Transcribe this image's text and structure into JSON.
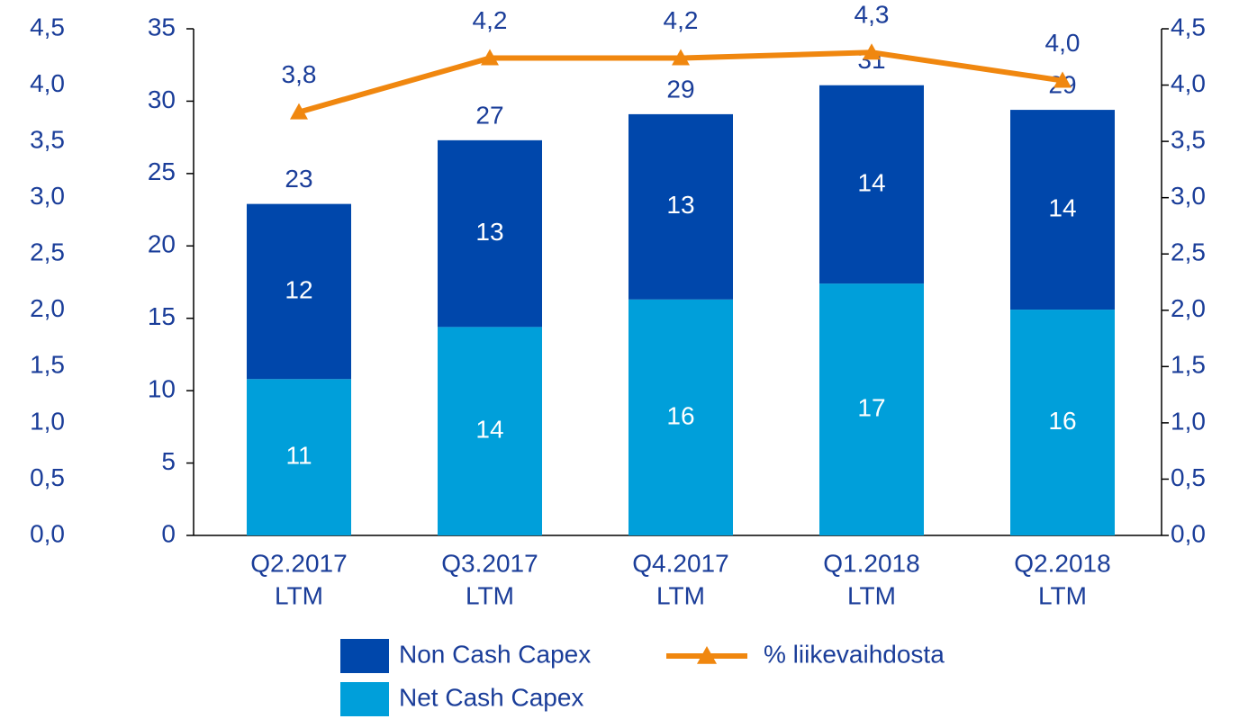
{
  "chart_data": {
    "type": "bar",
    "categories": [
      [
        "Q2.2017",
        "LTM"
      ],
      [
        "Q3.2017",
        "LTM"
      ],
      [
        "Q4.2017",
        "LTM"
      ],
      [
        "Q1.2018",
        "LTM"
      ],
      [
        "Q2.2018",
        "LTM"
      ]
    ],
    "series": [
      {
        "name": "Net Cash Capex",
        "color": "#009fda",
        "values": [
          10.8,
          14.4,
          16.3,
          17.4,
          15.6
        ],
        "value_labels": [
          "11",
          "14",
          "16",
          "17",
          "16"
        ]
      },
      {
        "name": "Non Cash Capex",
        "color": "#0047ab",
        "values": [
          12.1,
          12.9,
          12.8,
          13.7,
          13.8
        ],
        "value_labels": [
          "12",
          "13",
          "13",
          "14",
          "14"
        ]
      },
      {
        "name": "% liikevaihdosta",
        "type": "line",
        "axis": "y2",
        "color": "#f0870f",
        "values": [
          3.76,
          4.24,
          4.24,
          4.29,
          4.04
        ],
        "value_labels": [
          "3,8",
          "4,2",
          "4,2",
          "4,3",
          "4,0"
        ]
      }
    ],
    "total_labels": [
      "23",
      "27",
      "29",
      "31",
      "29"
    ],
    "ylim": [
      0,
      35
    ],
    "yticks": [
      0,
      5,
      10,
      15,
      20,
      25,
      30,
      35
    ],
    "y2lim": [
      0,
      4.5
    ],
    "y2ticks": [
      {
        "value": 0,
        "label": "0,0"
      },
      {
        "value": 0.5,
        "label": "0,5"
      },
      {
        "value": 1,
        "label": "1,0"
      },
      {
        "value": 1.5,
        "label": "1,5"
      },
      {
        "value": 2,
        "label": "2,0"
      },
      {
        "value": 2.5,
        "label": "2,5"
      },
      {
        "value": 3,
        "label": "3,0"
      },
      {
        "value": 3.5,
        "label": "3,5"
      },
      {
        "value": 4,
        "label": "4,0"
      },
      {
        "value": 4.5,
        "label": "4,5"
      }
    ],
    "grid": false
  }
}
